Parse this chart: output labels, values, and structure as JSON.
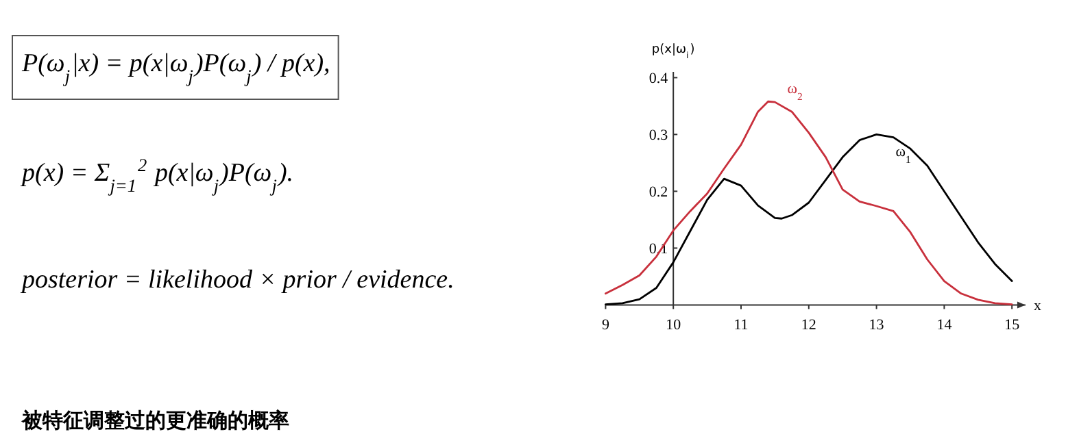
{
  "chart_data": {
    "type": "line",
    "xlabel": "x",
    "ylabel": "p(x|ω$_{i}$)",
    "xlim": [
      9,
      15.2
    ],
    "ylim": [
      0,
      0.41
    ],
    "xticks": [
      9,
      10,
      11,
      12,
      13,
      14,
      15
    ],
    "yticks": [
      0.1,
      0.2,
      0.3,
      0.4
    ],
    "series": [
      {
        "name": "ω$_{1}$",
        "color": "#000000",
        "x": [
          9,
          9.25,
          9.5,
          9.75,
          10,
          10.25,
          10.5,
          10.75,
          11,
          11.25,
          11.5,
          11.6,
          11.75,
          12,
          12.25,
          12.5,
          12.75,
          13,
          13.25,
          13.5,
          13.75,
          14,
          14.25,
          14.5,
          14.75,
          15
        ],
        "values": [
          0.001,
          0.003,
          0.01,
          0.03,
          0.075,
          0.13,
          0.185,
          0.222,
          0.21,
          0.175,
          0.153,
          0.152,
          0.158,
          0.18,
          0.22,
          0.26,
          0.29,
          0.3,
          0.295,
          0.275,
          0.245,
          0.2,
          0.155,
          0.11,
          0.072,
          0.042
        ]
      },
      {
        "name": "ω$_{2}$",
        "color": "#c8303c",
        "x": [
          9,
          9.25,
          9.5,
          9.75,
          10,
          10.25,
          10.5,
          10.75,
          11,
          11.25,
          11.4,
          11.5,
          11.75,
          12,
          12.25,
          12.5,
          12.75,
          13,
          13.25,
          13.5,
          13.75,
          14,
          14.25,
          14.5,
          14.75,
          15
        ],
        "values": [
          0.02,
          0.035,
          0.052,
          0.085,
          0.131,
          0.165,
          0.196,
          0.24,
          0.282,
          0.34,
          0.358,
          0.357,
          0.34,
          0.303,
          0.26,
          0.203,
          0.182,
          0.174,
          0.165,
          0.128,
          0.08,
          0.042,
          0.02,
          0.009,
          0.003,
          0.001
        ]
      }
    ],
    "annotations": [
      "P(ω$_{j}$|x) = p(x|ω$_{j}$)P(ω$_{j}$) / p(x),",
      "p(x) = Σ$_{j=1}$$^{2}$ p(x|ω$_{j}$)P(ω$_{j}$).",
      "posterior = likelihood × prior / evidence.",
      "被特征调整过的更准确的概率"
    ]
  }
}
